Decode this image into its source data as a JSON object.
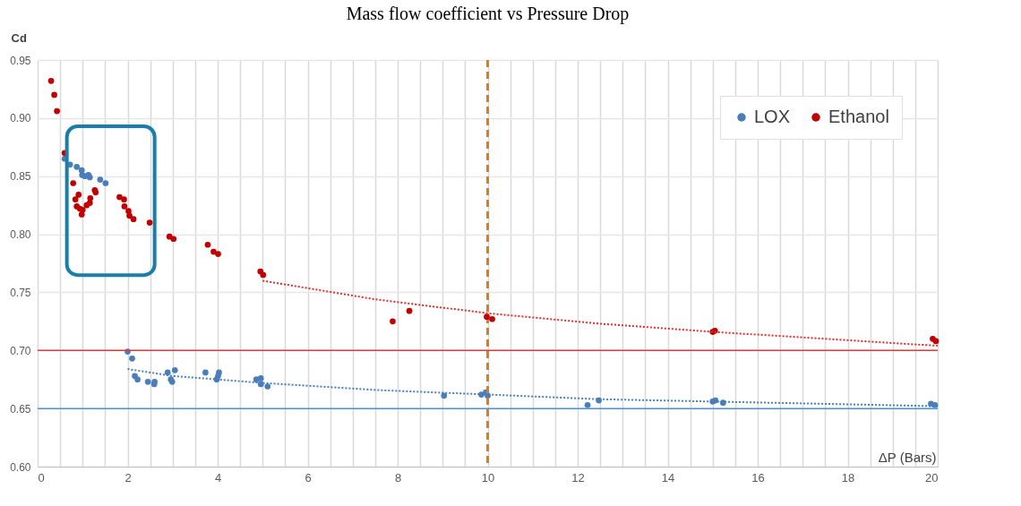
{
  "chart_data": {
    "type": "scatter",
    "title": "Mass flow coefficient vs Pressure Drop",
    "xlabel": "ΔP (Bars)",
    "ylabel": "Cd",
    "xlim": [
      0,
      20
    ],
    "ylim": [
      0.6,
      0.95
    ],
    "xticks": [
      0,
      {
        "value": 0.5,
        "label": null
      },
      {
        "value": 1,
        "label": null
      },
      {
        "value": 1.5,
        "label": null
      },
      2,
      {
        "value": 2.5,
        "label": null
      },
      {
        "value": 3,
        "label": null
      },
      {
        "value": 3.5,
        "label": null
      },
      4,
      {
        "value": 4.5,
        "label": null
      },
      {
        "value": 5,
        "label": null
      },
      {
        "value": 5.5,
        "label": null
      },
      6,
      {
        "value": 6.5,
        "label": null
      },
      {
        "value": 7,
        "label": null
      },
      {
        "value": 7.5,
        "label": null
      },
      8,
      {
        "value": 8.5,
        "label": null
      },
      {
        "value": 9,
        "label": null
      },
      {
        "value": 9.5,
        "label": null
      },
      10,
      {
        "value": 10.5,
        "label": null
      },
      {
        "value": 11,
        "label": null
      },
      {
        "value": 11.5,
        "label": null
      },
      12,
      {
        "value": 12.5,
        "label": null
      },
      {
        "value": 13,
        "label": null
      },
      {
        "value": 13.5,
        "label": null
      },
      14,
      {
        "value": 14.5,
        "label": null
      },
      {
        "value": 15,
        "label": null
      },
      {
        "value": 15.5,
        "label": null
      },
      16,
      {
        "value": 16.5,
        "label": null
      },
      {
        "value": 17,
        "label": null
      },
      {
        "value": 17.5,
        "label": null
      },
      18,
      {
        "value": 18.5,
        "label": null
      },
      {
        "value": 19,
        "label": null
      },
      {
        "value": 19.5,
        "label": null
      },
      20
    ],
    "yticks": [
      {
        "value": 0.6,
        "label": "0.60"
      },
      {
        "value": 0.65,
        "label": "0.65"
      },
      {
        "value": 0.7,
        "label": "0.70"
      },
      {
        "value": 0.75,
        "label": "0.75"
      },
      {
        "value": 0.8,
        "label": "0.80"
      },
      {
        "value": 0.85,
        "label": "0.85"
      },
      {
        "value": 0.9,
        "label": "0.90"
      },
      {
        "value": 0.95,
        "label": "0.95"
      }
    ],
    "grid": true,
    "legend": "top right",
    "marker": "circle",
    "series": [
      {
        "name": "LOX",
        "color": "#4a7ebb",
        "x": [
          0.6,
          0.72,
          0.87,
          0.98,
          0.99,
          1.05,
          1.13,
          1.16,
          1.39,
          1.51,
          2.0,
          2.1,
          2.16,
          2.22,
          2.45,
          2.59,
          2.6,
          2.89,
          2.96,
          2.99,
          3.05,
          3.73,
          3.98,
          4.01,
          4.03,
          4.86,
          4.96,
          4.96,
          5.11,
          9.03,
          9.86,
          9.96,
          10.0,
          12.22,
          12.47,
          15.0,
          15.06,
          15.23,
          19.85,
          19.94
        ],
        "values": [
          0.865,
          0.86,
          0.858,
          0.855,
          0.851,
          0.85,
          0.851,
          0.849,
          0.847,
          0.844,
          0.699,
          0.693,
          0.678,
          0.675,
          0.673,
          0.671,
          0.673,
          0.681,
          0.675,
          0.673,
          0.683,
          0.681,
          0.675,
          0.678,
          0.681,
          0.675,
          0.676,
          0.671,
          0.669,
          0.661,
          0.662,
          0.664,
          0.661,
          0.653,
          0.657,
          0.656,
          0.657,
          0.655,
          0.654,
          0.653
        ]
      },
      {
        "name": "Ethanol",
        "color": "#c00000",
        "x": [
          0.3,
          0.37,
          0.43,
          0.6,
          0.79,
          0.84,
          0.87,
          0.91,
          0.94,
          0.98,
          1.0,
          1.09,
          1.16,
          1.17,
          1.27,
          1.29,
          1.82,
          1.92,
          1.93,
          2.02,
          2.04,
          2.13,
          2.49,
          2.93,
          3.02,
          3.78,
          3.91,
          4.01,
          4.95,
          5.01,
          7.89,
          8.26,
          9.98,
          10.1,
          15.0,
          15.05,
          19.89,
          19.96
        ],
        "values": [
          0.932,
          0.92,
          0.906,
          0.87,
          0.844,
          0.83,
          0.824,
          0.834,
          0.822,
          0.817,
          0.821,
          0.825,
          0.827,
          0.831,
          0.838,
          0.836,
          0.832,
          0.83,
          0.824,
          0.82,
          0.816,
          0.813,
          0.81,
          0.798,
          0.796,
          0.791,
          0.785,
          0.783,
          0.768,
          0.765,
          0.725,
          0.734,
          0.729,
          0.727,
          0.716,
          0.717,
          0.71,
          0.708
        ]
      },
      {
        "type": "line",
        "line_style": "dotted",
        "marker": "none",
        "color": "#4a7ebb",
        "x": [
          2,
          3,
          5,
          7.5,
          10,
          12.5,
          15,
          17.5,
          20
        ],
        "values": [
          0.684,
          0.678,
          0.672,
          0.666,
          0.662,
          0.658,
          0.656,
          0.654,
          0.652
        ]
      },
      {
        "type": "line",
        "line_style": "dotted",
        "marker": "none",
        "color": "#e03030",
        "x": [
          5,
          7.5,
          10,
          12.5,
          15,
          17.5,
          20
        ],
        "values": [
          0.76,
          0.744,
          0.732,
          0.723,
          0.716,
          0.71,
          0.704
        ]
      }
    ],
    "ref_lines": [
      {
        "axis": "y",
        "value": 0.7,
        "color": "#d04040",
        "line_style": "solid"
      },
      {
        "axis": "y",
        "value": 0.65,
        "color": "#4a90e2",
        "line_style": "solid"
      },
      {
        "axis": "x",
        "value": 10,
        "color": "#e07b1a",
        "line_style": "dashed"
      }
    ]
  }
}
